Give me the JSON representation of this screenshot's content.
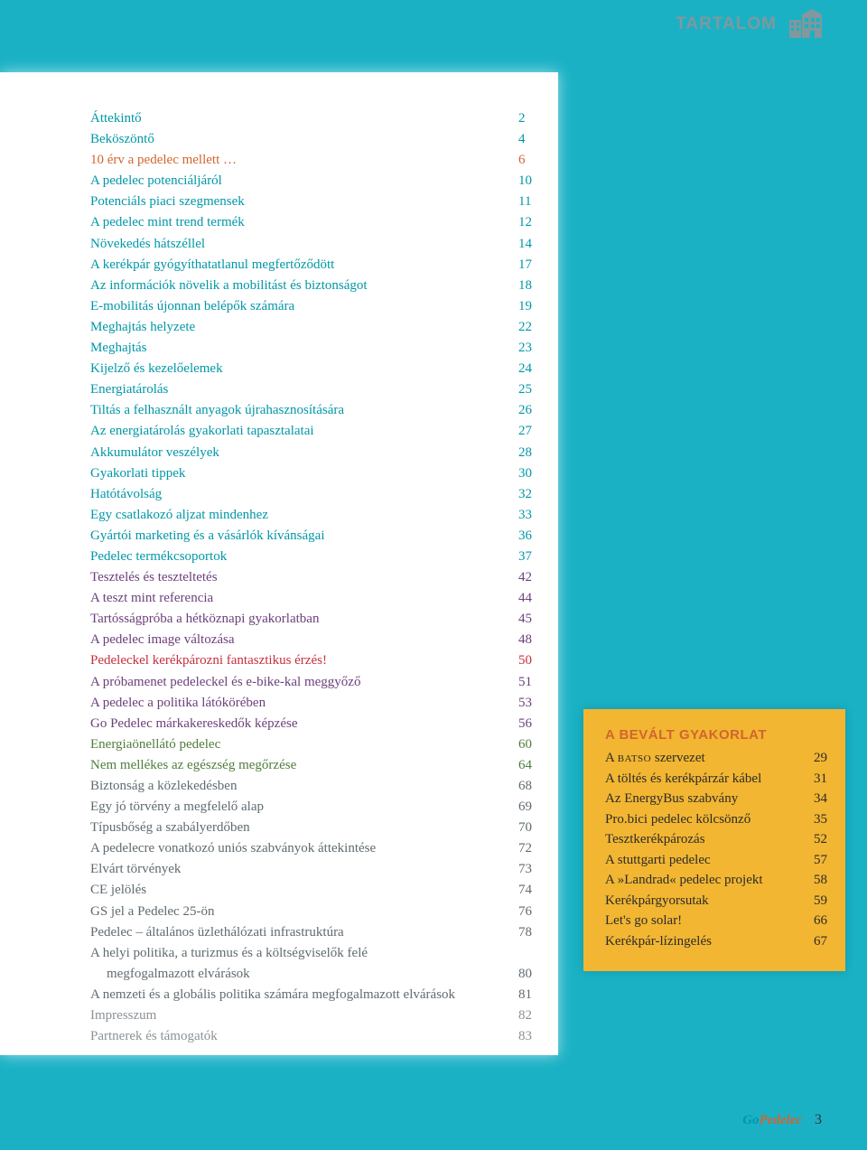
{
  "header": {
    "label": "TARTALOM"
  },
  "colors": {
    "teal": "#0097a7",
    "orange": "#d1652f",
    "purple": "#6b3f7a",
    "red": "#c62f3e",
    "green": "#4f7d3a",
    "gray": "#8a9196",
    "darkgray": "#5f6b70",
    "sidebarBg": "#f2b632",
    "pageBg": "#1ab1c5"
  },
  "toc": [
    {
      "title": "Áttekintő",
      "page": "2",
      "color": "c-teal"
    },
    {
      "title": "Beköszöntő",
      "page": "4",
      "color": "c-teal"
    },
    {
      "title": "10 érv a pedelec mellett …",
      "page": "6",
      "color": "c-orange"
    },
    {
      "title": "A pedelec potenciáljáról",
      "page": "10",
      "color": "c-teal"
    },
    {
      "title": "Potenciáls piaci szegmensek",
      "page": "11",
      "color": "c-teal"
    },
    {
      "title": "A pedelec mint trend termék",
      "page": "12",
      "color": "c-teal"
    },
    {
      "title": "Növekedés hátszéllel",
      "page": "14",
      "color": "c-teal"
    },
    {
      "title": "A kerékpár gyógyíthatatlanul megfertőződött",
      "page": "17",
      "color": "c-teal"
    },
    {
      "title": "Az információk növelik a mobilitást és biztonságot",
      "page": "18",
      "color": "c-teal"
    },
    {
      "title": "E-mobilitás újonnan belépők számára",
      "page": "19",
      "color": "c-teal"
    },
    {
      "title": "Meghajtás helyzete",
      "page": "22",
      "color": "c-teal"
    },
    {
      "title": "Meghajtás",
      "page": "23",
      "color": "c-teal"
    },
    {
      "title": "Kijelző és kezelőelemek",
      "page": "24",
      "color": "c-teal"
    },
    {
      "title": "Energiatárolás",
      "page": "25",
      "color": "c-teal"
    },
    {
      "title": "Tiltás a felhasznált anyagok újrahasznosítására",
      "page": "26",
      "color": "c-teal"
    },
    {
      "title": "Az energiatárolás gyakorlati tapasztalatai",
      "page": "27",
      "color": "c-teal"
    },
    {
      "title": "Akkumulátor veszélyek",
      "page": "28",
      "color": "c-teal"
    },
    {
      "title": "Gyakorlati tippek",
      "page": "30",
      "color": "c-teal"
    },
    {
      "title": "Hatótávolság",
      "page": "32",
      "color": "c-teal"
    },
    {
      "title": "Egy csatlakozó aljzat mindenhez",
      "page": "33",
      "color": "c-teal"
    },
    {
      "title": "Gyártói marketing és a vásárlók kívánságai",
      "page": "36",
      "color": "c-teal"
    },
    {
      "title": "Pedelec termékcsoportok",
      "page": "37",
      "color": "c-teal"
    },
    {
      "title": "Tesztelés és teszteltetés",
      "page": "42",
      "color": "c-purple"
    },
    {
      "title": "A teszt mint referencia",
      "page": "44",
      "color": "c-purple"
    },
    {
      "title": "Tartósságpróba a hétköznapi gyakorlatban",
      "page": "45",
      "color": "c-purple"
    },
    {
      "title": "A pedelec image változása",
      "page": "48",
      "color": "c-purple"
    },
    {
      "title": "Pedeleckel kerékpározni fantasztikus érzés!",
      "page": "50",
      "color": "c-red"
    },
    {
      "title": "A próbamenet pedeleckel és e-bike-kal meggyőző",
      "page": "51",
      "color": "c-purple"
    },
    {
      "title": "A pedelec a politika látókörében",
      "page": "53",
      "color": "c-purple"
    },
    {
      "title": "Go Pedelec márkakereskedők képzése",
      "page": "56",
      "color": "c-purple"
    },
    {
      "title": "Energiaönellátó pedelec",
      "page": "60",
      "color": "c-green"
    },
    {
      "title": "Nem mellékes az egészség megőrzése",
      "page": "64",
      "color": "c-green"
    },
    {
      "title": "Biztonság a közlekedésben",
      "page": "68",
      "color": "c-darkgray"
    },
    {
      "title": "Egy jó törvény a megfelelő alap",
      "page": "69",
      "color": "c-darkgray"
    },
    {
      "title": "Típusbőség a szabályerdőben",
      "page": "70",
      "color": "c-darkgray"
    },
    {
      "title": "A pedelecre vonatkozó uniós szabványok áttekintése",
      "page": "72",
      "color": "c-darkgray"
    },
    {
      "title": "Elvárt törvények",
      "page": "73",
      "color": "c-darkgray"
    },
    {
      "title": "CE jelölés",
      "page": "74",
      "color": "c-darkgray"
    },
    {
      "title": "GS jel a Pedelec 25-ön",
      "page": "76",
      "color": "c-darkgray"
    },
    {
      "title": "Pedelec – általános üzlethálózati infrastruktúra",
      "page": "78",
      "color": "c-darkgray"
    },
    {
      "title": "A helyi politika, a turizmus és a költségviselők felé",
      "page": "",
      "color": "c-darkgray"
    },
    {
      "title": "megfogalmazott elvárások",
      "page": "80",
      "color": "c-darkgray",
      "indent": true
    },
    {
      "title": "A nemzeti és a globális politika számára megfogalmazott elvárások",
      "page": "81",
      "color": "c-darkgray"
    },
    {
      "title": "Impresszum",
      "page": "82",
      "color": "c-gray"
    },
    {
      "title": "Partnerek és támogatók",
      "page": "83",
      "color": "c-gray"
    }
  ],
  "sidebar": {
    "title": "A BEVÁLT GYAKORLAT",
    "items": [
      {
        "titleHtml": "A <span class='sc'>batso</span> szervezet",
        "page": "29"
      },
      {
        "title": "A töltés és kerékpárzár kábel",
        "page": "31"
      },
      {
        "title": "Az EnergyBus szabvány",
        "page": "34"
      },
      {
        "title": "Pro.bici pedelec kölcsönző",
        "page": "35"
      },
      {
        "title": "Tesztkerékpározás",
        "page": "52"
      },
      {
        "title": "A stuttgarti pedelec",
        "page": "57"
      },
      {
        "title": "A »Landrad« pedelec projekt",
        "page": "58"
      },
      {
        "title": "Kerékpárgyorsutak",
        "page": "59"
      },
      {
        "title": "Let's go solar!",
        "page": "66"
      },
      {
        "title": "Kerékpár-lízingelés",
        "page": "67"
      }
    ]
  },
  "footer": {
    "brandGo": "Go",
    "brandRest": "Pedelec",
    "pageNum": "3"
  }
}
